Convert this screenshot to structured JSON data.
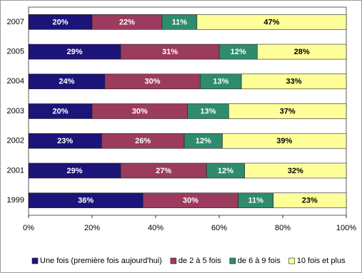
{
  "chart_data": {
    "type": "stacked_barh",
    "categories": [
      "2007",
      "2005",
      "2004",
      "2003",
      "2002",
      "2001",
      "1999"
    ],
    "series": [
      {
        "name": "Une fois (première fois aujourd'hui)",
        "color": "#1c1478",
        "values": [
          20,
          29,
          24,
          20,
          23,
          29,
          36
        ],
        "value_labels": [
          "20%",
          "29%",
          "24%",
          "20%",
          "23%",
          "29%",
          "36%"
        ]
      },
      {
        "name": "de 2 à 5 fois",
        "color": "#9b3b5e",
        "values": [
          22,
          31,
          30,
          30,
          26,
          27,
          30
        ],
        "value_labels": [
          "22%",
          "31%",
          "30%",
          "30%",
          "26%",
          "27%",
          "30%"
        ]
      },
      {
        "name": "de 6 à 9 fois",
        "color": "#2e8b6e",
        "values": [
          11,
          12,
          13,
          13,
          12,
          12,
          11
        ],
        "value_labels": [
          "11%",
          "12%",
          "13%",
          "13%",
          "12%",
          "12%",
          "11%"
        ]
      },
      {
        "name": "10 fois et plus",
        "color": "#ffff99",
        "values": [
          47,
          28,
          33,
          37,
          39,
          32,
          23
        ],
        "value_labels": [
          "47%",
          "28%",
          "33%",
          "37%",
          "39%",
          "32%",
          "23%"
        ]
      }
    ],
    "xlim": [
      0,
      100
    ],
    "xticks": [
      {
        "value": 0,
        "label": "0%"
      },
      {
        "value": 20,
        "label": "20%"
      },
      {
        "value": 40,
        "label": "40%"
      },
      {
        "value": 60,
        "label": "60%"
      },
      {
        "value": 80,
        "label": "80%"
      },
      {
        "value": 100,
        "label": "100%"
      }
    ],
    "legend": "bottom"
  }
}
